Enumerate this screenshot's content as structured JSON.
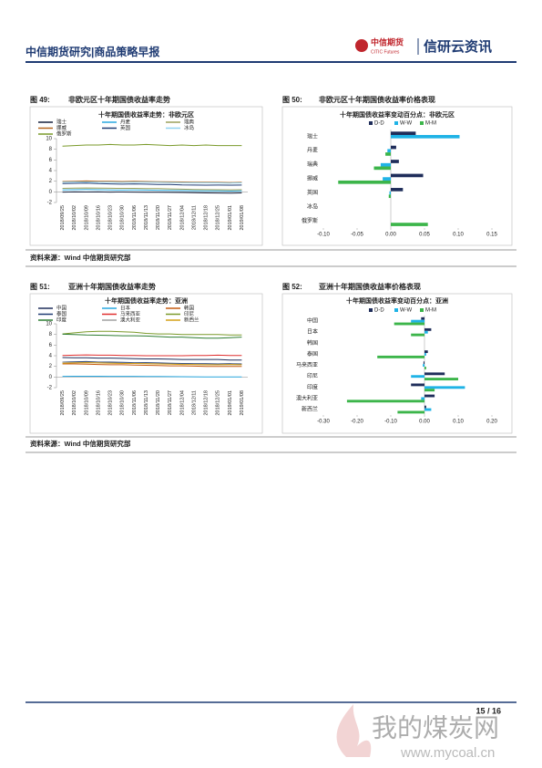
{
  "header": {
    "title": "中信期货研究|商品策略早报",
    "logo": "中信期货",
    "logo_en": "CITIC Futures",
    "brand": "信研云资讯"
  },
  "figures": [
    {
      "number": "图 49:",
      "title": "非欧元区十年期国债收益率走势"
    },
    {
      "number": "图 50:",
      "title": "非欧元区十年期国债收益率价格表现"
    },
    {
      "number": "图 51:",
      "title": "亚洲十年期国债收益率走势"
    },
    {
      "number": "图 52:",
      "title": "亚洲十年期国债收益率价格表现"
    }
  ],
  "sources": [
    "资料来源：Wind 中信期货研究部",
    "资料来源：Wind 中信期货研究部"
  ],
  "chart_data": [
    {
      "type": "line",
      "title": "十年期国债收益率走势：非欧元区",
      "categories": [
        "2018/09/25",
        "2018/10/02",
        "2018/10/09",
        "2018/10/16",
        "2018/10/23",
        "2018/10/30",
        "2018/11/06",
        "2018/11/13",
        "2018/11/20",
        "2018/11/27",
        "2018/12/04",
        "2018/12/11",
        "2018/12/18",
        "2018/12/25",
        "2019/01/01",
        "2019/01/08"
      ],
      "ylim": [
        -2,
        10
      ],
      "yticks": [
        -2,
        0,
        2,
        4,
        6,
        8,
        10
      ],
      "series": [
        {
          "name": "瑞士",
          "color": "#16213e",
          "values": [
            -0.05,
            -0.02,
            -0.03,
            -0.02,
            -0.05,
            -0.03,
            -0.05,
            -0.07,
            -0.08,
            -0.1,
            -0.12,
            -0.15,
            -0.2,
            -0.22,
            -0.25,
            -0.2
          ]
        },
        {
          "name": "丹麦",
          "color": "#29a8e0",
          "values": [
            0.35,
            0.4,
            0.42,
            0.4,
            0.35,
            0.33,
            0.35,
            0.33,
            0.3,
            0.28,
            0.25,
            0.22,
            0.2,
            0.18,
            0.15,
            0.18
          ]
        },
        {
          "name": "瑞典",
          "color": "#9aa05a",
          "values": [
            0.65,
            0.7,
            0.72,
            0.7,
            0.68,
            0.65,
            0.66,
            0.62,
            0.6,
            0.55,
            0.5,
            0.45,
            0.42,
            0.4,
            0.38,
            0.4
          ]
        },
        {
          "name": "挪威",
          "color": "#b5651d",
          "values": [
            1.95,
            2.0,
            2.05,
            2.0,
            1.98,
            1.95,
            1.97,
            1.95,
            1.9,
            1.88,
            1.85,
            1.82,
            1.8,
            1.78,
            1.75,
            1.78
          ]
        },
        {
          "name": "英国",
          "color": "#1f3b73",
          "values": [
            1.55,
            1.6,
            1.65,
            1.55,
            1.5,
            1.45,
            1.5,
            1.45,
            1.4,
            1.38,
            1.3,
            1.28,
            1.25,
            1.27,
            1.25,
            1.28
          ]
        },
        {
          "name": "冰岛",
          "color": "#8fd3f0",
          "values": [
            1.8,
            1.85,
            1.85,
            1.82,
            1.8,
            1.78,
            1.8,
            1.8,
            1.78,
            1.75,
            1.72,
            1.7,
            1.7,
            1.68,
            1.65,
            1.68
          ]
        },
        {
          "name": "俄罗斯",
          "color": "#7a9a2a",
          "values": [
            8.6,
            8.7,
            8.8,
            8.8,
            8.9,
            8.8,
            8.8,
            8.9,
            8.8,
            8.7,
            8.8,
            8.7,
            8.8,
            8.7,
            8.7,
            8.7
          ]
        }
      ]
    },
    {
      "type": "hbar",
      "title": "十年期国债收益率变动百分点：非欧元区",
      "categories": [
        "瑞士",
        "丹麦",
        "瑞典",
        "挪威",
        "英国",
        "冰岛",
        "俄罗斯"
      ],
      "xlim": [
        -0.1,
        0.15
      ],
      "xticks": [
        {
          "value": -0.1,
          "label": "-0.10"
        },
        {
          "value": -0.05,
          "label": "-0.05"
        },
        {
          "value": 0,
          "label": "0.00"
        },
        {
          "value": 0.05,
          "label": "0.05"
        },
        {
          "value": 0.1,
          "label": "0.10"
        },
        {
          "value": 0.15,
          "label": "0.15"
        }
      ],
      "series": [
        {
          "name": "D-D",
          "color": "#1f2d5a",
          "values": [
            0.037,
            0.008,
            0.012,
            0.048,
            0.018,
            0,
            0
          ]
        },
        {
          "name": "W-W",
          "color": "#1fb3e6",
          "values": [
            0.102,
            -0.005,
            -0.015,
            -0.012,
            -0.002,
            0,
            0
          ]
        },
        {
          "name": "M-M",
          "color": "#3cb54a",
          "values": [
            0,
            -0.008,
            -0.025,
            -0.078,
            -0.003,
            0,
            0.055
          ]
        }
      ]
    },
    {
      "type": "line",
      "title": "十年期国债收益率走势：亚洲",
      "categories": [
        "2018/09/25",
        "2018/10/02",
        "2018/10/09",
        "2018/10/16",
        "2018/10/23",
        "2018/10/30",
        "2018/11/06",
        "2018/11/13",
        "2018/11/20",
        "2018/11/27",
        "2018/12/04",
        "2018/12/11",
        "2018/12/18",
        "2018/12/25",
        "2019/01/01",
        "2019/01/08"
      ],
      "ylim": [
        -2,
        10
      ],
      "yticks": [
        -2,
        0,
        2,
        4,
        6,
        8,
        10
      ],
      "series": [
        {
          "name": "中国",
          "color": "#1f2d5a",
          "values": [
            3.65,
            3.6,
            3.6,
            3.55,
            3.55,
            3.5,
            3.45,
            3.4,
            3.4,
            3.35,
            3.3,
            3.3,
            3.3,
            3.3,
            3.2,
            3.2
          ]
        },
        {
          "name": "日本",
          "color": "#29a8e0",
          "values": [
            0.13,
            0.14,
            0.15,
            0.15,
            0.12,
            0.12,
            0.12,
            0.1,
            0.1,
            0.08,
            0.05,
            0.04,
            0.02,
            0,
            0.02,
            0.01
          ]
        },
        {
          "name": "韩国",
          "color": "#c55a11",
          "values": [
            2.45,
            2.45,
            2.4,
            2.35,
            2.3,
            2.3,
            2.25,
            2.2,
            2.15,
            2.1,
            2.1,
            2.05,
            2,
            2,
            2,
            2
          ]
        },
        {
          "name": "泰国",
          "color": "#1f3b73",
          "values": [
            2.8,
            2.85,
            2.9,
            2.8,
            2.8,
            2.75,
            2.7,
            2.7,
            2.65,
            2.6,
            2.55,
            2.5,
            2.5,
            2.45,
            2.5,
            2.45
          ]
        },
        {
          "name": "马来西亚",
          "color": "#e03030",
          "values": [
            4.05,
            4.1,
            4.15,
            4.1,
            4.1,
            4.05,
            4.05,
            4,
            4,
            4,
            4,
            4.05,
            4.05,
            4.1,
            4.05,
            4.05
          ]
        },
        {
          "name": "印尼",
          "color": "#7a9a2a",
          "values": [
            8.1,
            8.3,
            8.5,
            8.6,
            8.6,
            8.5,
            8.4,
            8.2,
            8.1,
            8.1,
            8,
            8,
            8,
            8,
            7.9,
            7.9
          ]
        },
        {
          "name": "印度",
          "color": "#2e7d32",
          "values": [
            8.05,
            8,
            7.9,
            7.85,
            7.8,
            7.75,
            7.75,
            7.7,
            7.6,
            7.5,
            7.5,
            7.4,
            7.3,
            7.3,
            7.4,
            7.5
          ]
        },
        {
          "name": "澳大利亚",
          "color": "#a0a0a0",
          "values": [
            2.75,
            2.7,
            2.75,
            2.7,
            2.65,
            2.6,
            2.6,
            2.55,
            2.5,
            2.45,
            2.4,
            2.35,
            2.3,
            2.3,
            2.3,
            2.3
          ]
        },
        {
          "name": "新西兰",
          "color": "#d4a017",
          "values": [
            2.6,
            2.65,
            2.7,
            2.65,
            2.6,
            2.55,
            2.55,
            2.5,
            2.45,
            2.4,
            2.35,
            2.35,
            2.3,
            2.3,
            2.35,
            2.3
          ]
        }
      ]
    },
    {
      "type": "hbar",
      "title": "十年期国债收益率变动百分点：亚洲",
      "categories": [
        "中国",
        "日本",
        "韩国",
        "泰国",
        "马来西亚",
        "印尼",
        "印度",
        "澳大利亚",
        "新西兰"
      ],
      "xlim": [
        -0.3,
        0.2
      ],
      "xticks": [
        {
          "value": -0.3,
          "label": "-0.30"
        },
        {
          "value": -0.2,
          "label": "-0.20"
        },
        {
          "value": -0.1,
          "label": "-0.10"
        },
        {
          "value": 0,
          "label": "0.00"
        },
        {
          "value": 0.1,
          "label": "0.10"
        },
        {
          "value": 0.2,
          "label": "0.20"
        }
      ],
      "series": [
        {
          "name": "D-D",
          "color": "#1f2d5a",
          "values": [
            -0.01,
            0.02,
            0,
            0.01,
            -0.003,
            0.06,
            -0.04,
            0.03,
            0.005
          ]
        },
        {
          "name": "W-W",
          "color": "#1fb3e6",
          "values": [
            -0.04,
            0.01,
            0,
            0.005,
            -0.005,
            -0.04,
            0.12,
            -0.01,
            0.02
          ]
        },
        {
          "name": "M-M",
          "color": "#3cb54a",
          "values": [
            -0.09,
            -0.04,
            0,
            -0.14,
            0.005,
            0.1,
            0.03,
            -0.23,
            -0.08
          ]
        }
      ]
    }
  ],
  "footer": {
    "page": "15 / 16"
  },
  "watermark": {
    "name": "我的煤炭网",
    "url": "www.mycoal.cn"
  }
}
